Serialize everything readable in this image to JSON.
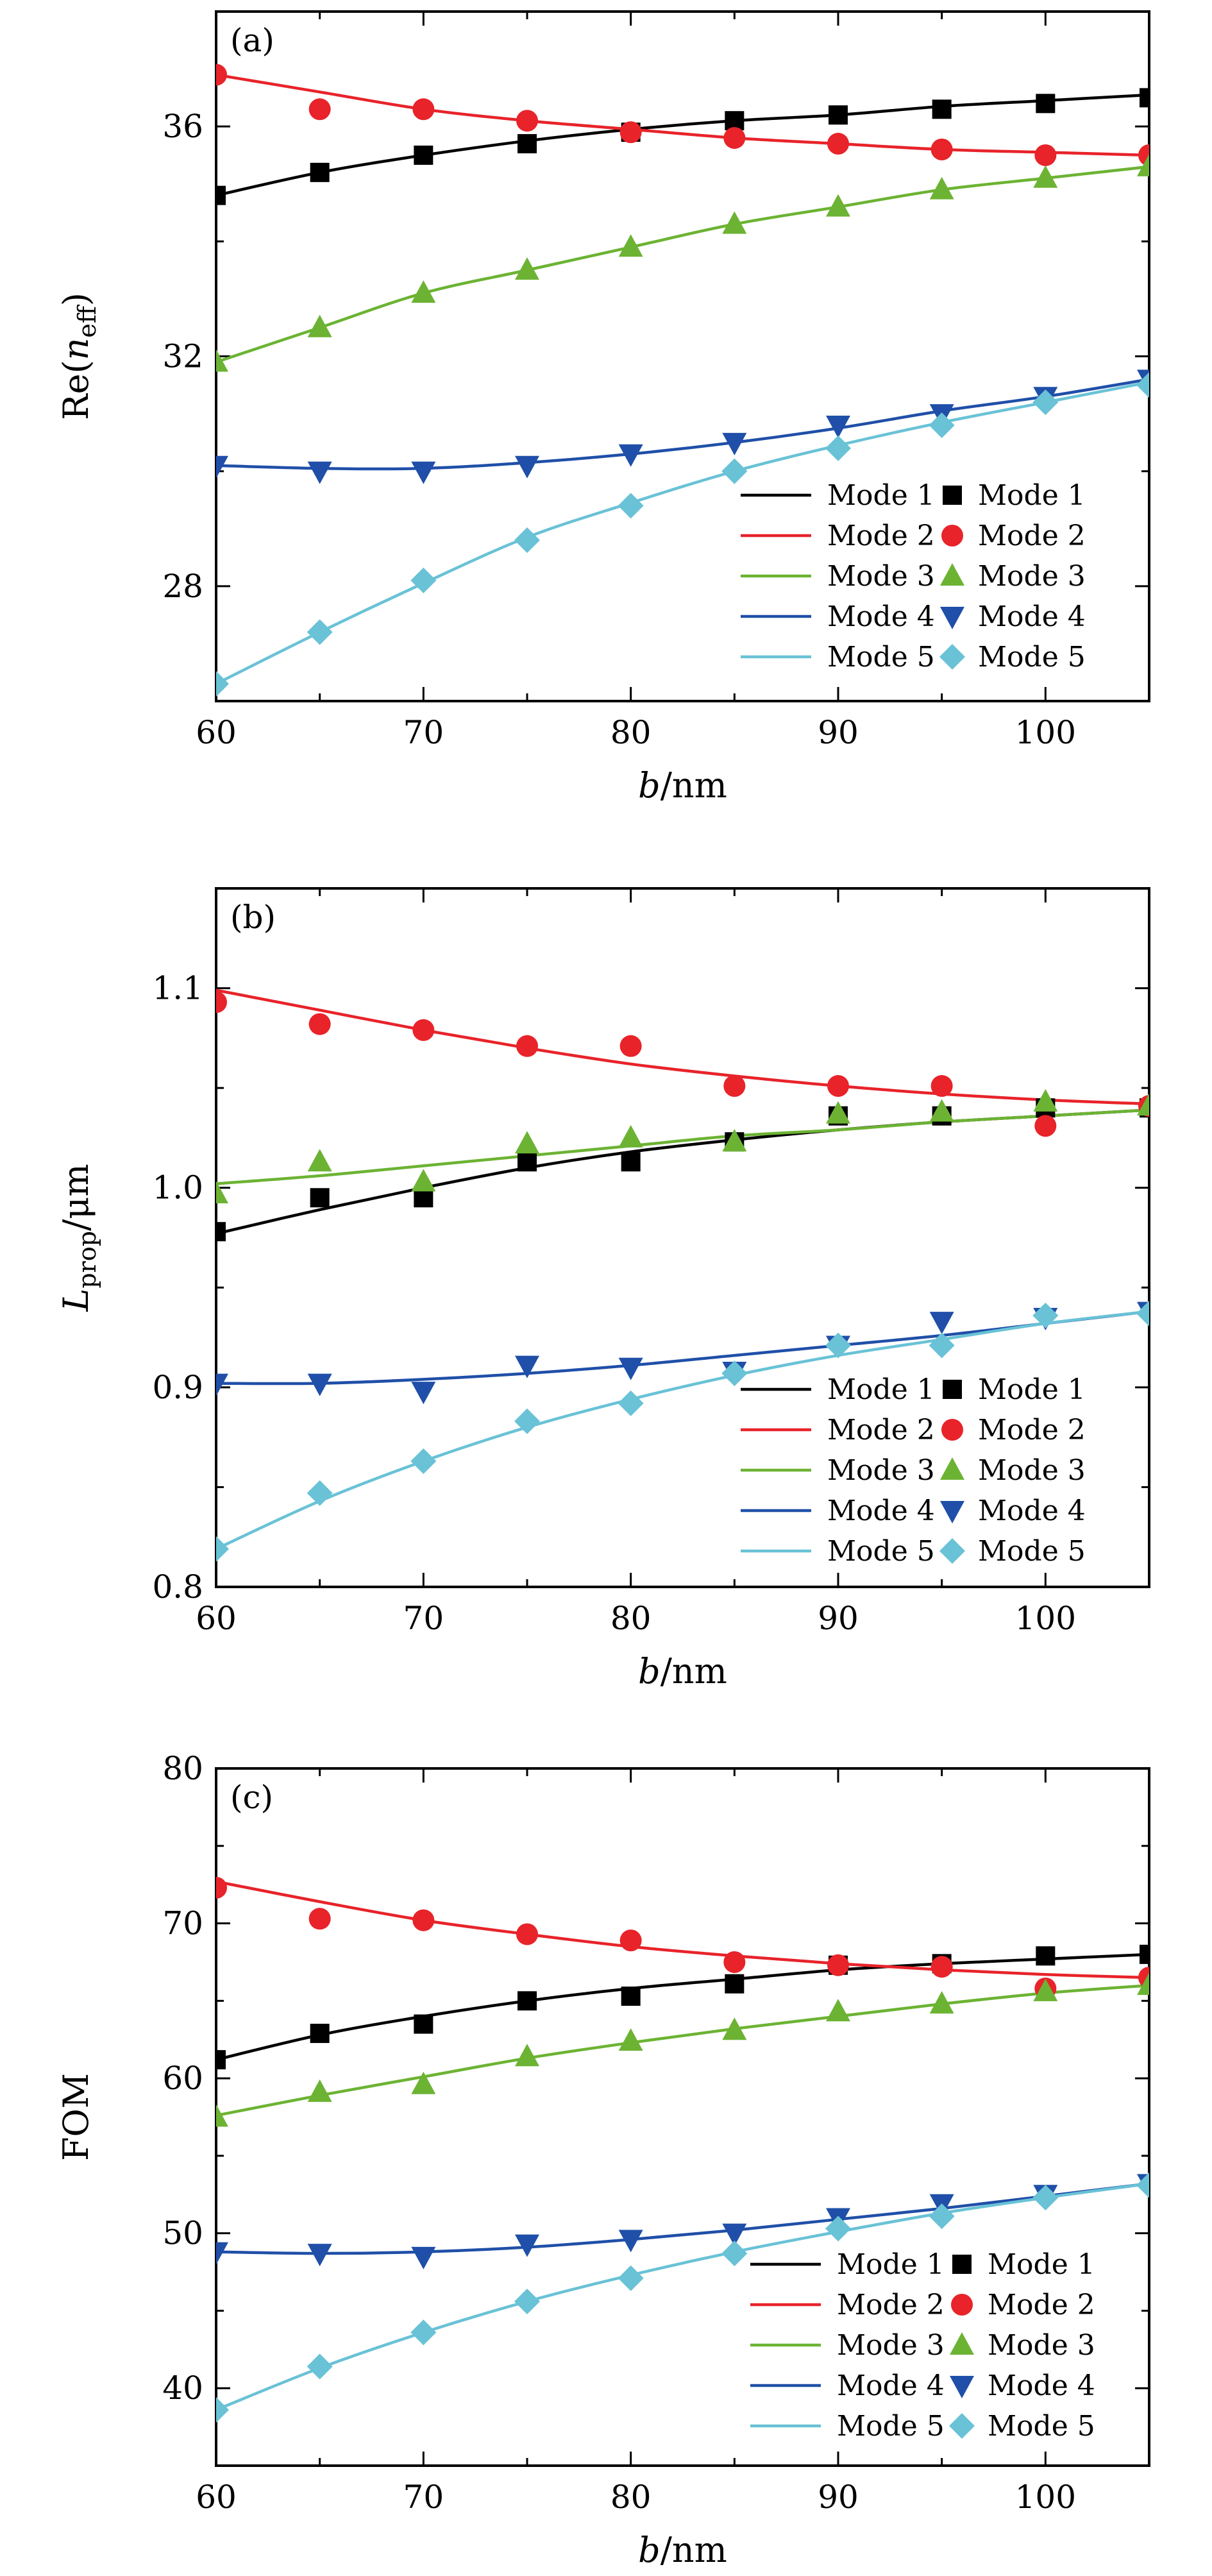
{
  "chart_data": [
    {
      "type": "line",
      "panel_label": "(a)",
      "xlabel": {
        "italic": "b",
        "rest": "/nm"
      },
      "ylabel": {
        "pre": "Re(",
        "sym": "n",
        "sub": "eff",
        "post": ")"
      },
      "xlim": [
        60,
        105
      ],
      "ylim": [
        26.0,
        38.0
      ],
      "xticks": [
        60,
        70,
        80,
        90,
        100
      ],
      "yticks": [
        28,
        32,
        36
      ],
      "legend": "bottom-right",
      "x": [
        60,
        65,
        70,
        75,
        80,
        85,
        90,
        95,
        100,
        105
      ],
      "series": [
        {
          "name": "Mode 1",
          "color": "#000000",
          "marker": "square",
          "fit": [
            34.8,
            35.2,
            35.5,
            35.75,
            35.95,
            36.1,
            36.2,
            36.35,
            36.45,
            36.55
          ],
          "values": [
            34.8,
            35.2,
            35.5,
            35.7,
            35.9,
            36.1,
            36.2,
            36.3,
            36.4,
            36.5
          ]
        },
        {
          "name": "Mode 2",
          "color": "#e8232a",
          "marker": "circle",
          "fit": [
            36.9,
            36.6,
            36.3,
            36.1,
            35.95,
            35.8,
            35.7,
            35.6,
            35.55,
            35.5
          ],
          "values": [
            36.9,
            36.3,
            36.3,
            36.1,
            35.9,
            35.8,
            35.7,
            35.6,
            35.5,
            35.5
          ]
        },
        {
          "name": "Mode 3",
          "color": "#6cb333",
          "marker": "triangle-up",
          "fit": [
            31.9,
            32.5,
            33.1,
            33.5,
            33.9,
            34.3,
            34.6,
            34.9,
            35.1,
            35.3
          ],
          "values": [
            31.9,
            32.5,
            33.1,
            33.5,
            33.9,
            34.3,
            34.6,
            34.9,
            35.1,
            35.3
          ]
        },
        {
          "name": "Mode 4",
          "color": "#1f4fa8",
          "marker": "triangle-down",
          "fit": [
            30.1,
            30.05,
            30.05,
            30.15,
            30.3,
            30.5,
            30.75,
            31.05,
            31.3,
            31.6
          ],
          "values": [
            30.1,
            30.0,
            30.0,
            30.1,
            30.3,
            30.5,
            30.8,
            31.0,
            31.3,
            31.6
          ]
        },
        {
          "name": "Mode 5",
          "color": "#69c2d6",
          "marker": "diamond",
          "fit": [
            26.3,
            27.2,
            28.05,
            28.85,
            29.45,
            30.0,
            30.45,
            30.85,
            31.2,
            31.55
          ],
          "values": [
            26.3,
            27.2,
            28.1,
            28.8,
            29.4,
            30.0,
            30.4,
            30.8,
            31.2,
            31.5
          ]
        }
      ]
    },
    {
      "type": "line",
      "panel_label": "(b)",
      "xlabel": {
        "italic": "b",
        "rest": "/nm"
      },
      "ylabel": {
        "pre": "",
        "sym": "L",
        "sub": "prop",
        "post": "/μm"
      },
      "xlim": [
        60,
        105
      ],
      "ylim": [
        0.8,
        1.15
      ],
      "xticks": [
        60,
        70,
        80,
        90,
        100
      ],
      "yticks": [
        0.8,
        0.9,
        1.0,
        1.1
      ],
      "legend": "bottom-right",
      "x": [
        60,
        65,
        70,
        75,
        80,
        85,
        90,
        95,
        100,
        105
      ],
      "series": [
        {
          "name": "Mode 1",
          "color": "#000000",
          "marker": "square",
          "fit": [
            0.977,
            0.989,
            1.0,
            1.01,
            1.018,
            1.024,
            1.029,
            1.033,
            1.036,
            1.039
          ],
          "values": [
            0.978,
            0.995,
            0.995,
            1.013,
            1.013,
            1.023,
            1.036,
            1.036,
            1.04,
            1.04
          ]
        },
        {
          "name": "Mode 2",
          "color": "#e8232a",
          "marker": "circle",
          "fit": [
            1.099,
            1.089,
            1.079,
            1.07,
            1.062,
            1.056,
            1.051,
            1.047,
            1.044,
            1.042
          ],
          "values": [
            1.093,
            1.082,
            1.079,
            1.071,
            1.071,
            1.051,
            1.051,
            1.051,
            1.031,
            1.041
          ]
        },
        {
          "name": "Mode 3",
          "color": "#6cb333",
          "marker": "triangle-up",
          "fit": [
            1.002,
            1.006,
            1.011,
            1.016,
            1.021,
            1.026,
            1.029,
            1.033,
            1.036,
            1.039
          ],
          "values": [
            0.997,
            1.013,
            1.003,
            1.022,
            1.025,
            1.023,
            1.037,
            1.038,
            1.043,
            1.041
          ]
        },
        {
          "name": "Mode 4",
          "color": "#1f4fa8",
          "marker": "triangle-down",
          "fit": [
            0.902,
            0.902,
            0.904,
            0.907,
            0.911,
            0.916,
            0.921,
            0.926,
            0.932,
            0.938
          ],
          "values": [
            0.902,
            0.902,
            0.898,
            0.911,
            0.91,
            0.908,
            0.921,
            0.933,
            0.935,
            0.938
          ]
        },
        {
          "name": "Mode 5",
          "color": "#69c2d6",
          "marker": "diamond",
          "fit": [
            0.819,
            0.843,
            0.863,
            0.88,
            0.894,
            0.906,
            0.916,
            0.924,
            0.932,
            0.938
          ],
          "values": [
            0.819,
            0.847,
            0.863,
            0.883,
            0.892,
            0.907,
            0.921,
            0.921,
            0.936,
            0.937
          ]
        }
      ]
    },
    {
      "type": "line",
      "panel_label": "(c)",
      "xlabel": {
        "italic": "b",
        "rest": "/nm"
      },
      "ylabel": {
        "pre": "FOM",
        "sym": "",
        "sub": "",
        "post": ""
      },
      "xlim": [
        60,
        105
      ],
      "ylim": [
        35,
        80
      ],
      "xticks": [
        60,
        70,
        80,
        90,
        100
      ],
      "yticks": [
        40,
        50,
        60,
        70,
        80
      ],
      "legend": "bottom-right",
      "x": [
        60,
        65,
        70,
        75,
        80,
        85,
        90,
        95,
        100,
        105
      ],
      "series": [
        {
          "name": "Mode 1",
          "color": "#000000",
          "marker": "square",
          "fit": [
            61.2,
            62.8,
            64.0,
            65.0,
            65.8,
            66.4,
            67.0,
            67.4,
            67.7,
            68.0
          ],
          "values": [
            61.2,
            62.9,
            63.5,
            65.0,
            65.3,
            66.1,
            67.3,
            67.4,
            67.9,
            68.0
          ]
        },
        {
          "name": "Mode 2",
          "color": "#e8232a",
          "marker": "circle",
          "fit": [
            72.7,
            71.4,
            70.2,
            69.3,
            68.5,
            67.9,
            67.4,
            67.0,
            66.7,
            66.5
          ],
          "values": [
            72.3,
            70.3,
            70.2,
            69.3,
            68.9,
            67.5,
            67.3,
            67.2,
            65.8,
            66.5
          ]
        },
        {
          "name": "Mode 3",
          "color": "#6cb333",
          "marker": "triangle-up",
          "fit": [
            57.6,
            58.9,
            60.1,
            61.3,
            62.3,
            63.2,
            64.0,
            64.8,
            65.5,
            66.0
          ],
          "values": [
            57.5,
            59.1,
            59.6,
            61.4,
            62.4,
            63.1,
            64.3,
            64.8,
            65.6,
            66.0
          ]
        },
        {
          "name": "Mode 4",
          "color": "#1f4fa8",
          "marker": "triangle-down",
          "fit": [
            48.8,
            48.7,
            48.8,
            49.1,
            49.6,
            50.2,
            50.9,
            51.6,
            52.4,
            53.2
          ],
          "values": [
            48.8,
            48.7,
            48.5,
            49.3,
            49.6,
            50.0,
            51.0,
            51.9,
            52.5,
            53.2
          ]
        },
        {
          "name": "Mode 5",
          "color": "#69c2d6",
          "marker": "diamond",
          "fit": [
            38.6,
            41.3,
            43.6,
            45.6,
            47.3,
            48.8,
            50.1,
            51.3,
            52.3,
            53.2
          ],
          "values": [
            38.6,
            41.4,
            43.6,
            45.6,
            47.1,
            48.7,
            50.3,
            51.1,
            52.3,
            53.1
          ]
        }
      ]
    }
  ]
}
